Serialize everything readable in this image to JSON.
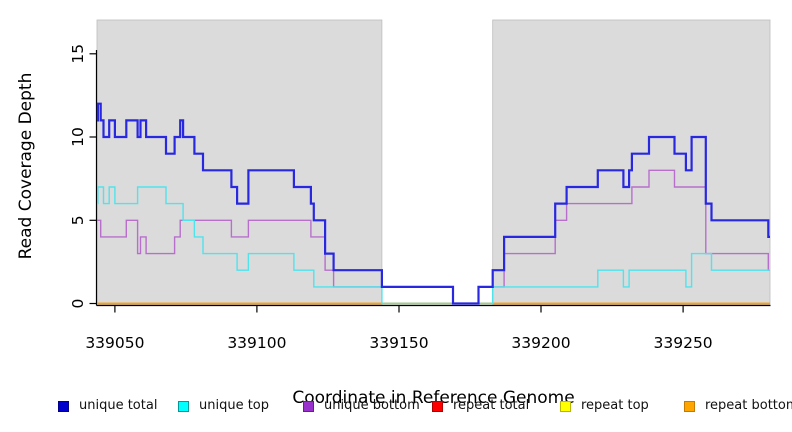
{
  "chart_data": {
    "type": "line",
    "line_style": "step",
    "title": "",
    "xlabel": "Coordinate in Reference Genome",
    "ylabel": "Read Coverage Depth",
    "xlim": [
      339043.7,
      339280.6
    ],
    "ylim": [
      0,
      17.1
    ],
    "x_ticks": [
      339050,
      339100,
      339150,
      339200,
      339250
    ],
    "y_ticks": [
      0,
      5,
      10,
      15
    ],
    "grid": false,
    "legend_position": "bottom",
    "plot_background": {
      "shaded_color": "#dbdbdb",
      "shaded_border": "#bdbdbd",
      "unshaded_color": "#ffffff",
      "shaded_regions": [
        [
          339043.7,
          339144
        ],
        [
          339183,
          339280.6
        ]
      ],
      "unshaded_region": [
        339144,
        339183
      ]
    },
    "draw_order": [
      3,
      4,
      5,
      2,
      1,
      0
    ],
    "series": [
      {
        "name": "unique total",
        "line_color": "#2828e0",
        "legend_fill": "#0000cd",
        "legend_edge": "#00008b",
        "line_width": 2.2,
        "steps": [
          [
            339043.7,
            11
          ],
          [
            339044,
            12
          ],
          [
            339045,
            11
          ],
          [
            339046,
            10
          ],
          [
            339048,
            11
          ],
          [
            339050,
            10
          ],
          [
            339054,
            11
          ],
          [
            339058,
            10
          ],
          [
            339059,
            11
          ],
          [
            339061,
            10
          ],
          [
            339068,
            9
          ],
          [
            339071,
            10
          ],
          [
            339073,
            11
          ],
          [
            339074,
            10
          ],
          [
            339078,
            9
          ],
          [
            339081,
            8
          ],
          [
            339091,
            7
          ],
          [
            339093,
            6
          ],
          [
            339097,
            8
          ],
          [
            339113,
            7
          ],
          [
            339119,
            6
          ],
          [
            339120,
            5
          ],
          [
            339124,
            3
          ],
          [
            339127,
            2
          ],
          [
            339144,
            1
          ],
          [
            339169,
            0
          ],
          [
            339178,
            1
          ],
          [
            339183,
            2
          ],
          [
            339187,
            4
          ],
          [
            339205,
            6
          ],
          [
            339209,
            7
          ],
          [
            339220,
            8
          ],
          [
            339229,
            7
          ],
          [
            339231,
            8
          ],
          [
            339232,
            9
          ],
          [
            339238,
            10
          ],
          [
            339247,
            9
          ],
          [
            339251,
            8
          ],
          [
            339253,
            10
          ],
          [
            339258,
            6
          ],
          [
            339260,
            5
          ],
          [
            339280,
            4
          ]
        ]
      },
      {
        "name": "unique top",
        "line_color": "#4fe3ec",
        "legend_fill": "#00ffff",
        "legend_edge": "#009a9a",
        "line_width": 1.4,
        "steps": [
          [
            339043.7,
            6
          ],
          [
            339044,
            7
          ],
          [
            339046,
            6
          ],
          [
            339048,
            7
          ],
          [
            339050,
            6
          ],
          [
            339058,
            7
          ],
          [
            339068,
            6
          ],
          [
            339074,
            5
          ],
          [
            339078,
            4
          ],
          [
            339081,
            3
          ],
          [
            339093,
            2
          ],
          [
            339097,
            3
          ],
          [
            339113,
            2
          ],
          [
            339120,
            1
          ],
          [
            339144,
            0
          ],
          [
            339183,
            1
          ],
          [
            339220,
            2
          ],
          [
            339229,
            1
          ],
          [
            339231,
            2
          ],
          [
            339251,
            1
          ],
          [
            339253,
            3
          ],
          [
            339260,
            2
          ]
        ]
      },
      {
        "name": "unique bottom",
        "line_color": "#b76fcb",
        "legend_fill": "#9932cc",
        "legend_edge": "#6a1b9a",
        "line_width": 1.4,
        "steps": [
          [
            339043.7,
            5
          ],
          [
            339045,
            4
          ],
          [
            339054,
            5
          ],
          [
            339058,
            3
          ],
          [
            339059,
            4
          ],
          [
            339061,
            3
          ],
          [
            339071,
            4
          ],
          [
            339073,
            5
          ],
          [
            339091,
            4
          ],
          [
            339097,
            5
          ],
          [
            339119,
            4
          ],
          [
            339124,
            2
          ],
          [
            339127,
            1
          ],
          [
            339169,
            0
          ],
          [
            339178,
            1
          ],
          [
            339187,
            3
          ],
          [
            339205,
            5
          ],
          [
            339209,
            6
          ],
          [
            339232,
            7
          ],
          [
            339238,
            8
          ],
          [
            339247,
            7
          ],
          [
            339258,
            3
          ],
          [
            339280,
            2
          ]
        ]
      },
      {
        "name": "repeat total",
        "line_color": "#dc0000",
        "legend_fill": "#ff0000",
        "legend_edge": "#b00000",
        "line_width": 1.4,
        "steps": [
          [
            339043.7,
            0
          ]
        ]
      },
      {
        "name": "repeat top",
        "line_color": "#f5f500",
        "legend_fill": "#ffff00",
        "legend_edge": "#b8b800",
        "line_width": 1.4,
        "steps": [
          [
            339043.7,
            0
          ]
        ]
      },
      {
        "name": "repeat bottom",
        "line_color": "#ff9c1a",
        "legend_fill": "#ffa500",
        "legend_edge": "#c57a00",
        "line_width": 1.6,
        "steps": [
          [
            339043.7,
            0
          ]
        ]
      }
    ]
  }
}
